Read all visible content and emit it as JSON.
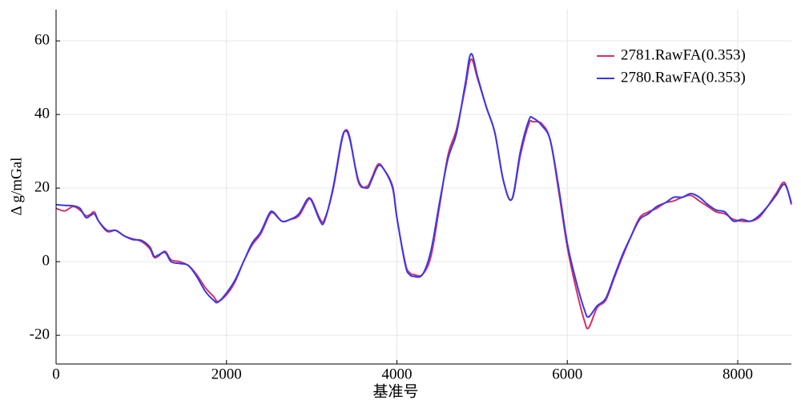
{
  "chart_data": {
    "type": "line",
    "xlabel": "基准号",
    "ylabel": "Δ g/mGal",
    "xlim": [
      0,
      8630
    ],
    "ylim": [
      -27.8,
      68.5
    ],
    "xticks": [
      0,
      2000,
      4000,
      6000,
      8000
    ],
    "yticks": [
      -20,
      0,
      20,
      40,
      60
    ],
    "grid": true,
    "legend": "upper right",
    "x": [
      0,
      100,
      200,
      280,
      350,
      400,
      450,
      500,
      600,
      700,
      800,
      900,
      1000,
      1100,
      1150,
      1200,
      1280,
      1350,
      1450,
      1550,
      1650,
      1750,
      1850,
      1900,
      2000,
      2100,
      2200,
      2300,
      2400,
      2500,
      2550,
      2650,
      2750,
      2850,
      2950,
      3000,
      3100,
      3150,
      3250,
      3350,
      3400,
      3450,
      3550,
      3650,
      3700,
      3780,
      3850,
      3950,
      4000,
      4100,
      4150,
      4200,
      4300,
      4400,
      4500,
      4600,
      4700,
      4800,
      4870,
      4950,
      5050,
      5150,
      5250,
      5350,
      5450,
      5550,
      5600,
      5700,
      5800,
      5900,
      6000,
      6100,
      6200,
      6250,
      6350,
      6450,
      6550,
      6650,
      6750,
      6850,
      6950,
      7050,
      7150,
      7250,
      7350,
      7450,
      7550,
      7650,
      7750,
      7850,
      7950,
      8050,
      8150,
      8250,
      8350,
      8450,
      8550,
      8630
    ],
    "series": [
      {
        "name": "2781.RawFA(0.353)",
        "color": "#d8305e",
        "values": [
          14.5,
          13.8,
          15,
          14,
          12.5,
          12.8,
          13.5,
          11,
          8.2,
          8.5,
          7,
          6.2,
          5.5,
          3.5,
          1.2,
          1.5,
          2.8,
          0.5,
          0,
          -1,
          -3.5,
          -7,
          -9.5,
          -10.8,
          -9,
          -5.5,
          0,
          4.5,
          7.5,
          12.5,
          13.2,
          11,
          11.5,
          12.5,
          16.5,
          16.8,
          11.5,
          11.5,
          19.5,
          32.5,
          35.8,
          33.5,
          21.5,
          20.5,
          22.5,
          26.5,
          25,
          20.5,
          12,
          -0.5,
          -3,
          -3.5,
          -3.5,
          1.5,
          15,
          29,
          36,
          47,
          55,
          49.5,
          42,
          35,
          22,
          17,
          29,
          37.5,
          38,
          37.5,
          33,
          19,
          4,
          -7,
          -16,
          -18,
          -12.5,
          -10.5,
          -4.5,
          1.5,
          7,
          12,
          13.5,
          14.5,
          16,
          16.5,
          17.5,
          18,
          16.5,
          15,
          13.5,
          13,
          11.5,
          11,
          11,
          12,
          15,
          18.5,
          21.5,
          15.5
        ]
      },
      {
        "name": "2780.RawFA(0.353)",
        "color": "#3838ee",
        "values": [
          15.5,
          15.3,
          15.2,
          14.5,
          12,
          12.5,
          13,
          11,
          8.5,
          8.5,
          7,
          6,
          5.8,
          4,
          1.5,
          1.8,
          2.5,
          0,
          -0.5,
          -1,
          -4,
          -8,
          -10.5,
          -11,
          -8.5,
          -5,
          0,
          5,
          8,
          13,
          13.5,
          11,
          11.5,
          13,
          17,
          16.5,
          11,
          11,
          20,
          33,
          35.5,
          33,
          22,
          20,
          22,
          26,
          25,
          20,
          12,
          -1,
          -3.5,
          -4,
          -3.5,
          3,
          16,
          28,
          35,
          48,
          56.5,
          50,
          42,
          35,
          22,
          17,
          30,
          38.5,
          39,
          37,
          33,
          20,
          5,
          -5,
          -13,
          -15,
          -12,
          -10,
          -4,
          2,
          7,
          11.5,
          13,
          15,
          16,
          17.5,
          17.5,
          18.5,
          17.5,
          15.5,
          14,
          13.5,
          11,
          11.5,
          11,
          12.5,
          15,
          18,
          21,
          16
        ]
      }
    ]
  }
}
